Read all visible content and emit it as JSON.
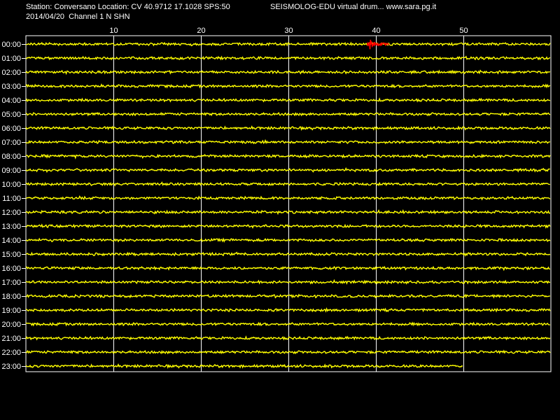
{
  "header": {
    "station_line": "Station: Conversano Location: CV 40.9712 17.1028 SPS:50",
    "date_line": "2014/04/20  Channel 1 N SHN",
    "brand_line": "SEISMOLOG-EDU virtual drum... www.sara.pg.it"
  },
  "chart_data": {
    "type": "line",
    "xlabel": "",
    "ylabel": "",
    "xlim": [
      0,
      60
    ],
    "x_ticks": [
      "10",
      "20",
      "30",
      "40",
      "50"
    ],
    "x_tick_values": [
      10,
      20,
      30,
      40,
      50
    ],
    "rows": [
      "00:00",
      "01:00",
      "02:00",
      "03:00",
      "04:00",
      "05:00",
      "06:00",
      "07:00",
      "08:00",
      "09:00",
      "10:00",
      "11:00",
      "12:00",
      "13:00",
      "14:00",
      "15:00",
      "16:00",
      "17:00",
      "18:00",
      "19:00",
      "20:00",
      "21:00",
      "22:00",
      "23:00"
    ],
    "last_row_end_minute": 50,
    "trace_color": "#ffff00",
    "event_color": "#ff0000",
    "events": [
      {
        "row": "00:00",
        "start_minute": 39.0,
        "end_minute": 41.5
      }
    ],
    "grid": true,
    "grid_color": "#ffffff"
  }
}
